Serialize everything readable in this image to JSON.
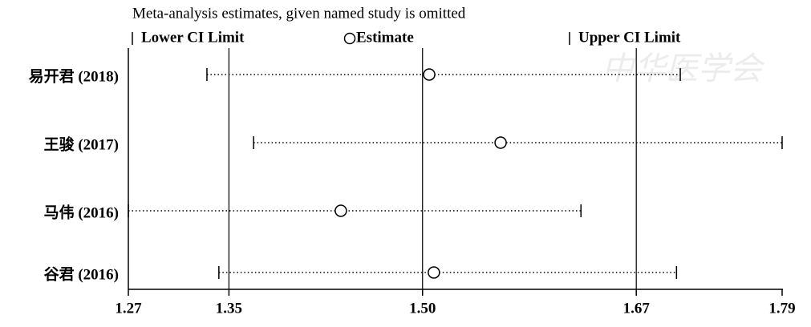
{
  "chart_data": {
    "type": "forest",
    "title": "Meta-analysis estimates, given named study is omitted",
    "watermark": "中华医学会",
    "categories": [
      "易开君 (2018)",
      "王骏 (2017)",
      "马伟 (2016)",
      "谷君 (2016)"
    ],
    "series": [
      {
        "name": "Lower CI Limit",
        "color": "#000000",
        "values": [
          1.3325,
          1.3696,
          1.27,
          1.342
        ]
      },
      {
        "name": "Estimate",
        "color": "#000000",
        "values": [
          1.5093,
          1.5661,
          1.439,
          1.513
        ]
      },
      {
        "name": "Upper CI Limit",
        "color": "#000000",
        "values": [
          1.709,
          1.79,
          1.63,
          1.706
        ]
      }
    ],
    "xlim": [
      1.27,
      1.79
    ],
    "xticks": [
      1.27,
      1.35,
      {
        "value": 1.504,
        "label": "1.50"
      },
      {
        "value": 1.674,
        "label": "1.67"
      },
      1.79
    ]
  }
}
